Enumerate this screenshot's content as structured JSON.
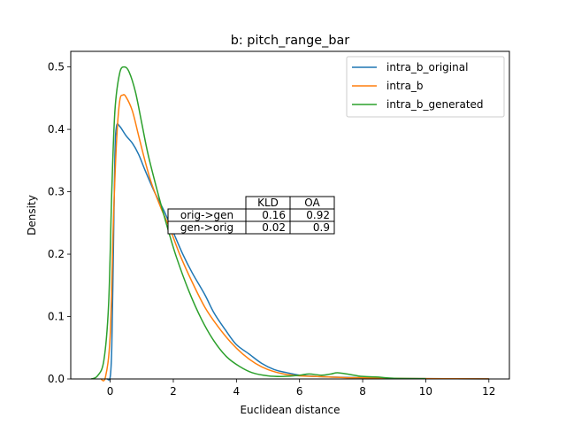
{
  "chart_data": {
    "type": "line",
    "title": "b: pitch_range_bar",
    "xlabel": "Euclidean distance",
    "ylabel": "Density",
    "xlim": [
      -1.25,
      12.65
    ],
    "ylim": [
      0,
      0.525
    ],
    "x_ticks": [
      0,
      2,
      4,
      6,
      8,
      10,
      12
    ],
    "x_tick_labels": [
      "0",
      "2",
      "4",
      "6",
      "8",
      "10",
      "12"
    ],
    "y_ticks": [
      0.0,
      0.1,
      0.2,
      0.3,
      0.4,
      0.5
    ],
    "y_tick_labels": [
      "0.0",
      "0.1",
      "0.2",
      "0.3",
      "0.4",
      "0.5"
    ],
    "grid": false,
    "legend_placement": "top-right",
    "series": [
      {
        "name": "intra_b_original",
        "color": "#1f77b4",
        "points": [
          [
            -0.1,
            0
          ],
          [
            0.0,
            0.003
          ],
          [
            0.05,
            0.05
          ],
          [
            0.1,
            0.2
          ],
          [
            0.15,
            0.36
          ],
          [
            0.2,
            0.405
          ],
          [
            0.3,
            0.405
          ],
          [
            0.5,
            0.39
          ],
          [
            0.7,
            0.378
          ],
          [
            0.9,
            0.36
          ],
          [
            1.1,
            0.335
          ],
          [
            1.4,
            0.3
          ],
          [
            1.7,
            0.27
          ],
          [
            2.0,
            0.235
          ],
          [
            2.3,
            0.2
          ],
          [
            2.6,
            0.17
          ],
          [
            3.0,
            0.135
          ],
          [
            3.3,
            0.105
          ],
          [
            3.7,
            0.075
          ],
          [
            4.0,
            0.055
          ],
          [
            4.4,
            0.04
          ],
          [
            4.8,
            0.025
          ],
          [
            5.2,
            0.015
          ],
          [
            5.6,
            0.01
          ],
          [
            6.0,
            0.006
          ],
          [
            6.5,
            0.004
          ],
          [
            7.0,
            0.003
          ],
          [
            8.0,
            0.002
          ],
          [
            9.0,
            0.001
          ],
          [
            10.0,
            0.0005
          ],
          [
            12.0,
            0.0001
          ]
        ]
      },
      {
        "name": "intra_b",
        "color": "#ff7f0e",
        "points": [
          [
            -0.3,
            0
          ],
          [
            -0.15,
            0.003
          ],
          [
            0.0,
            0.07
          ],
          [
            0.1,
            0.25
          ],
          [
            0.2,
            0.38
          ],
          [
            0.3,
            0.445
          ],
          [
            0.4,
            0.455
          ],
          [
            0.5,
            0.452
          ],
          [
            0.7,
            0.43
          ],
          [
            0.9,
            0.39
          ],
          [
            1.1,
            0.35
          ],
          [
            1.3,
            0.315
          ],
          [
            1.6,
            0.275
          ],
          [
            1.9,
            0.24
          ],
          [
            2.2,
            0.2
          ],
          [
            2.6,
            0.155
          ],
          [
            3.0,
            0.115
          ],
          [
            3.4,
            0.085
          ],
          [
            3.8,
            0.06
          ],
          [
            4.2,
            0.04
          ],
          [
            4.6,
            0.025
          ],
          [
            5.0,
            0.015
          ],
          [
            5.5,
            0.008
          ],
          [
            6.0,
            0.005
          ],
          [
            6.5,
            0.004
          ],
          [
            7.0,
            0.003
          ],
          [
            7.5,
            0.002
          ],
          [
            8.0,
            0.002
          ],
          [
            9.0,
            0.001
          ],
          [
            10.0,
            0.0005
          ],
          [
            12.0,
            0.0002
          ]
        ]
      },
      {
        "name": "intra_b_generated",
        "color": "#2ca02c",
        "points": [
          [
            -0.6,
            0
          ],
          [
            -0.4,
            0.005
          ],
          [
            -0.2,
            0.03
          ],
          [
            -0.05,
            0.12
          ],
          [
            0.05,
            0.3
          ],
          [
            0.15,
            0.43
          ],
          [
            0.3,
            0.49
          ],
          [
            0.45,
            0.5
          ],
          [
            0.6,
            0.492
          ],
          [
            0.8,
            0.46
          ],
          [
            1.0,
            0.41
          ],
          [
            1.2,
            0.36
          ],
          [
            1.5,
            0.3
          ],
          [
            1.8,
            0.245
          ],
          [
            2.1,
            0.195
          ],
          [
            2.5,
            0.14
          ],
          [
            2.9,
            0.095
          ],
          [
            3.3,
            0.06
          ],
          [
            3.7,
            0.035
          ],
          [
            4.1,
            0.02
          ],
          [
            4.5,
            0.01
          ],
          [
            5.0,
            0.005
          ],
          [
            5.5,
            0.004
          ],
          [
            6.0,
            0.006
          ],
          [
            6.3,
            0.008
          ],
          [
            6.7,
            0.006
          ],
          [
            7.0,
            0.008
          ],
          [
            7.2,
            0.01
          ],
          [
            7.5,
            0.008
          ],
          [
            8.0,
            0.004
          ],
          [
            8.5,
            0.003
          ],
          [
            9.0,
            0.001
          ],
          [
            10.0,
            0.0005
          ]
        ]
      }
    ],
    "table": {
      "columns": [
        "KLD",
        "OA"
      ],
      "rows": [
        {
          "label": "orig->gen",
          "values": [
            "0.16",
            "0.92"
          ]
        },
        {
          "label": "gen->orig",
          "values": [
            "0.02",
            "0.9"
          ]
        }
      ]
    }
  }
}
